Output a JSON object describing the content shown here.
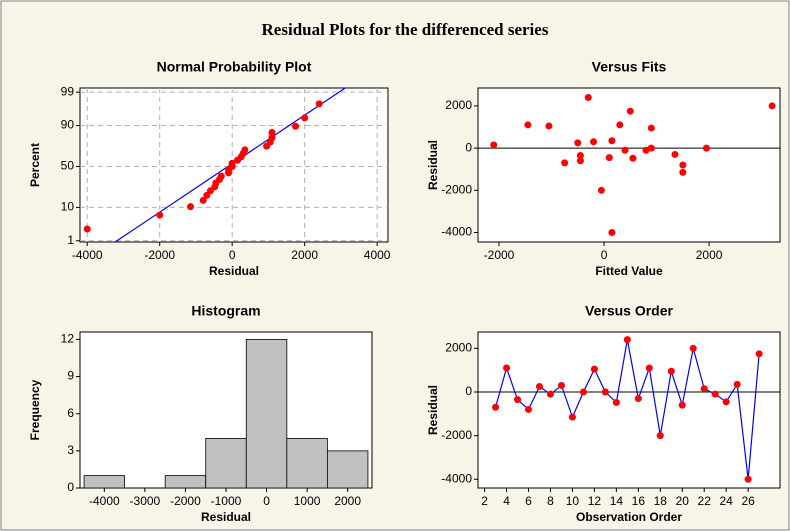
{
  "title": "Residual Plots for the differenced series",
  "chart_data": [
    {
      "type": "probability",
      "title": "Normal Probability Plot",
      "x_label": "Residual",
      "y_label": "Percent",
      "yscale": "probability",
      "grid": true,
      "color": "#ff0000",
      "line_color": "#0000ff",
      "x": [
        -4000,
        -2000,
        -1150,
        -800,
        -700,
        -600,
        -480,
        -450,
        -350,
        -300,
        -100,
        -100,
        0,
        0,
        150,
        250,
        300,
        350,
        950,
        1050,
        1100,
        1100,
        1750,
        2000,
        2400
      ],
      "y": [
        2.5,
        6.4,
        10.4,
        14.4,
        18.3,
        22.3,
        26.2,
        30.2,
        34.2,
        38.1,
        42.1,
        46.0,
        50.0,
        54.0,
        57.9,
        61.9,
        65.8,
        69.8,
        73.8,
        77.7,
        81.7,
        85.6,
        89.6,
        93.6,
        97.5
      ],
      "fit_line": {
        "x": [
          -3230,
          3120
        ],
        "y": [
          0.9,
          99.3
        ]
      },
      "xlim": [
        -4200,
        4300
      ],
      "xticks": [
        -4000,
        -2000,
        0,
        2000,
        4000
      ],
      "ylim": [
        0.9,
        99.3
      ],
      "yticks": [
        1,
        10,
        50,
        90,
        99
      ]
    },
    {
      "type": "scatter",
      "title": "Versus Fits",
      "x_label": "Fitted Value",
      "y_label": "Residual",
      "color": "#ff0000",
      "hline": 0,
      "x": [
        -750,
        -1450,
        -450,
        1500,
        -500,
        800,
        -200,
        1500,
        900,
        -1050,
        1950,
        550,
        -300,
        1350,
        300,
        -50,
        900,
        -450,
        3200,
        -2100,
        400,
        100,
        150,
        150,
        500
      ],
      "y": [
        -700,
        1100,
        -350,
        -800,
        250,
        -100,
        300,
        -1150,
        0,
        1050,
        0,
        -480,
        2400,
        -300,
        1100,
        -2000,
        950,
        -600,
        2000,
        150,
        -100,
        -450,
        350,
        -4000,
        1750
      ],
      "xlim": [
        -2400,
        3350
      ],
      "xticks": [
        -2000,
        0,
        2000
      ],
      "ylim": [
        -4450,
        2850
      ],
      "yticks": [
        -4000,
        -2000,
        0,
        2000
      ]
    },
    {
      "type": "histogram",
      "title": "Histogram",
      "x_label": "Residual",
      "y_label": "Frequency",
      "color": "#c0c0c0",
      "bins": [
        -4500,
        -3500,
        -2500,
        -1500,
        -500,
        500,
        1500,
        2500
      ],
      "counts": [
        1,
        0,
        1,
        4,
        12,
        4,
        3
      ],
      "xlim": [
        -4600,
        2600
      ],
      "xticks": [
        -4000,
        -3000,
        -2000,
        -1000,
        0,
        1000,
        2000
      ],
      "ylim": [
        0,
        12.6
      ],
      "yticks": [
        0,
        3,
        6,
        9,
        12
      ]
    },
    {
      "type": "line",
      "title": "Versus Order",
      "x_label": "Observation Order",
      "y_label": "Residual",
      "color": "#ff0000",
      "line_color": "#0000ff",
      "hline": 0,
      "x": [
        3,
        4,
        5,
        6,
        7,
        8,
        9,
        10,
        11,
        12,
        13,
        14,
        15,
        16,
        17,
        18,
        19,
        20,
        21,
        22,
        23,
        24,
        25,
        26,
        27
      ],
      "values": [
        -700,
        1100,
        -350,
        -800,
        250,
        -100,
        300,
        -1150,
        0,
        1050,
        0,
        -480,
        2400,
        -300,
        1100,
        -2000,
        950,
        -600,
        2000,
        150,
        -100,
        -450,
        350,
        -4000,
        1750
      ],
      "xlim": [
        1.4,
        28.9
      ],
      "xticks": [
        2,
        4,
        6,
        8,
        10,
        12,
        14,
        16,
        18,
        20,
        22,
        24,
        26
      ],
      "ylim": [
        -4400,
        2750
      ],
      "yticks": [
        -4000,
        -2000,
        0,
        2000
      ]
    }
  ]
}
